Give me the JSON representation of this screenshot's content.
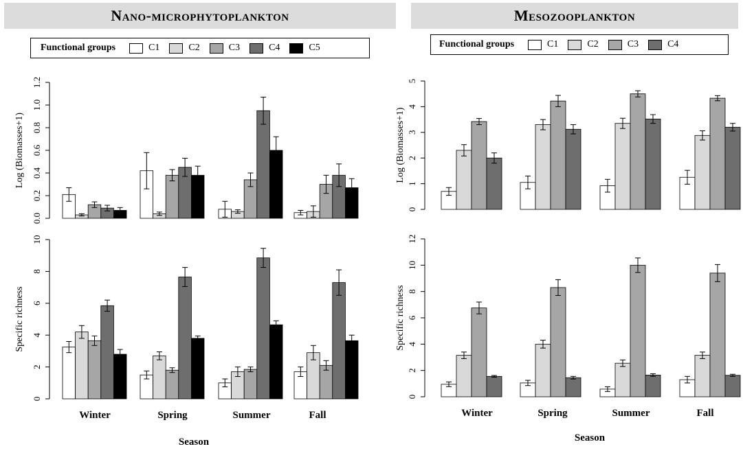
{
  "panels": {
    "left": {
      "title": "Nano-microphytoplankton",
      "legend_title": "Functional groups",
      "groups": [
        "C1",
        "C2",
        "C3",
        "C4",
        "C5"
      ]
    },
    "right": {
      "title": "Mesozooplankton",
      "legend_title": "Functional groups",
      "groups": [
        "C1",
        "C2",
        "C3",
        "C4"
      ]
    }
  },
  "colors": {
    "C1": "#ffffff",
    "C2": "#d9d9d9",
    "C3": "#a6a6a6",
    "C4": "#6e6e6e",
    "C5": "#000000"
  },
  "xlabel": "Season",
  "chart_data": [
    {
      "type": "bar",
      "panel": "Nano-microphytoplankton",
      "ylabel": "Log (Biomasses+1)",
      "categories": [
        "Winter",
        "Spring",
        "Summer",
        "Fall"
      ],
      "ylim": [
        0,
        1.2
      ],
      "yticks": [
        "0.0",
        "0.2",
        "0.4",
        "0.6",
        "0.8",
        "1.0",
        "1.2"
      ],
      "show_x_labels": false,
      "series": [
        {
          "name": "C1",
          "values": [
            0.21,
            0.42,
            0.08,
            0.05
          ],
          "errors": [
            0.06,
            0.16,
            0.07,
            0.02
          ]
        },
        {
          "name": "C2",
          "values": [
            0.03,
            0.04,
            0.06,
            0.06
          ],
          "errors": [
            0.01,
            0.015,
            0.015,
            0.05
          ]
        },
        {
          "name": "C3",
          "values": [
            0.12,
            0.38,
            0.34,
            0.3
          ],
          "errors": [
            0.025,
            0.05,
            0.06,
            0.08
          ]
        },
        {
          "name": "C4",
          "values": [
            0.09,
            0.45,
            0.95,
            0.38
          ],
          "errors": [
            0.025,
            0.08,
            0.12,
            0.1
          ]
        },
        {
          "name": "C5",
          "values": [
            0.07,
            0.38,
            0.6,
            0.27
          ],
          "errors": [
            0.025,
            0.08,
            0.12,
            0.08
          ]
        }
      ]
    },
    {
      "type": "bar",
      "panel": "Nano-microphytoplankton",
      "ylabel": "Specific richness",
      "categories": [
        "Winter",
        "Spring",
        "Summer",
        "Fall"
      ],
      "ylim": [
        0,
        10
      ],
      "yticks": [
        "0",
        "2",
        "4",
        "6",
        "8",
        "10"
      ],
      "show_x_labels": true,
      "series": [
        {
          "name": "C1",
          "values": [
            3.25,
            1.5,
            1.0,
            1.7
          ],
          "errors": [
            0.35,
            0.25,
            0.25,
            0.3
          ]
        },
        {
          "name": "C2",
          "values": [
            4.2,
            2.7,
            1.7,
            2.9
          ],
          "errors": [
            0.4,
            0.25,
            0.3,
            0.45
          ]
        },
        {
          "name": "C3",
          "values": [
            3.65,
            1.8,
            1.85,
            2.1
          ],
          "errors": [
            0.3,
            0.15,
            0.15,
            0.3
          ]
        },
        {
          "name": "C4",
          "values": [
            5.85,
            7.65,
            8.85,
            7.3
          ],
          "errors": [
            0.35,
            0.6,
            0.6,
            0.8
          ]
        },
        {
          "name": "C5",
          "values": [
            2.8,
            3.8,
            4.65,
            3.65
          ],
          "errors": [
            0.3,
            0.15,
            0.25,
            0.35
          ]
        }
      ]
    },
    {
      "type": "bar",
      "panel": "Mesozooplankton",
      "ylabel": "Log (Biomasses+1)",
      "categories": [
        "Winter",
        "Spring",
        "Summer",
        "Fall"
      ],
      "ylim": [
        0,
        5
      ],
      "yticks": [
        "0",
        "1",
        "2",
        "3",
        "4",
        "5"
      ],
      "show_x_labels": false,
      "series": [
        {
          "name": "C1",
          "values": [
            0.7,
            1.05,
            0.92,
            1.25
          ],
          "errors": [
            0.15,
            0.25,
            0.25,
            0.27
          ]
        },
        {
          "name": "C2",
          "values": [
            2.3,
            3.3,
            3.35,
            2.88
          ],
          "errors": [
            0.22,
            0.2,
            0.2,
            0.18
          ]
        },
        {
          "name": "C3",
          "values": [
            3.42,
            4.22,
            4.5,
            4.33
          ],
          "errors": [
            0.12,
            0.22,
            0.12,
            0.1
          ]
        },
        {
          "name": "C4",
          "values": [
            2.0,
            3.12,
            3.52,
            3.2
          ],
          "errors": [
            0.2,
            0.18,
            0.17,
            0.15
          ]
        }
      ]
    },
    {
      "type": "bar",
      "panel": "Mesozooplankton",
      "ylabel": "Specific richness",
      "categories": [
        "Winter",
        "Spring",
        "Summer",
        "Fall"
      ],
      "ylim": [
        0,
        12
      ],
      "yticks": [
        "0",
        "2",
        "4",
        "6",
        "8",
        "10",
        "12"
      ],
      "show_x_labels": true,
      "series": [
        {
          "name": "C1",
          "values": [
            0.95,
            1.05,
            0.58,
            1.3
          ],
          "errors": [
            0.18,
            0.2,
            0.18,
            0.25
          ]
        },
        {
          "name": "C2",
          "values": [
            3.15,
            4.0,
            2.55,
            3.15
          ],
          "errors": [
            0.25,
            0.3,
            0.25,
            0.25
          ]
        },
        {
          "name": "C3",
          "values": [
            6.75,
            8.3,
            10.0,
            9.4
          ],
          "errors": [
            0.45,
            0.6,
            0.55,
            0.65
          ]
        },
        {
          "name": "C4",
          "values": [
            1.55,
            1.45,
            1.65,
            1.63
          ],
          "errors": [
            0.07,
            0.1,
            0.1,
            0.08
          ]
        }
      ]
    }
  ]
}
